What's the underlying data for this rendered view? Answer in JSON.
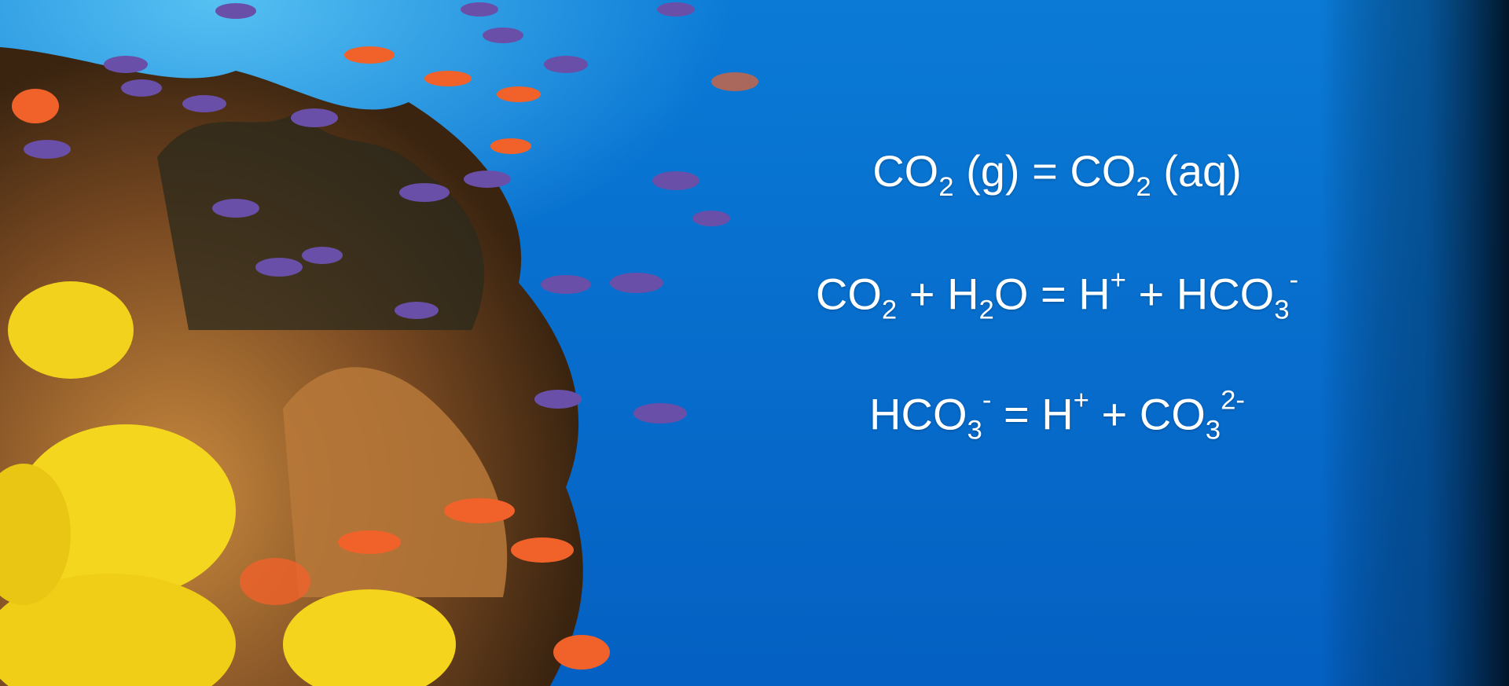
{
  "equations": [
    [
      {
        "text": "CO"
      },
      {
        "sub": "2"
      },
      {
        "text": " (g) = CO"
      },
      {
        "sub": "2"
      },
      {
        "text": " (aq)"
      }
    ],
    [
      {
        "text": "CO"
      },
      {
        "sub": "2"
      },
      {
        "text": " + H"
      },
      {
        "sub": "2"
      },
      {
        "text": "O = H"
      },
      {
        "sup": "+"
      },
      {
        "text": " + HCO"
      },
      {
        "sub": "3"
      },
      {
        "sup": "-"
      }
    ],
    [
      {
        "text": "HCO"
      },
      {
        "sub": "3"
      },
      {
        "sup": "-"
      },
      {
        "text": " = H"
      },
      {
        "sup": "+"
      },
      {
        "text": " + CO"
      },
      {
        "sub": "3"
      },
      {
        "sup": "2-"
      }
    ]
  ]
}
